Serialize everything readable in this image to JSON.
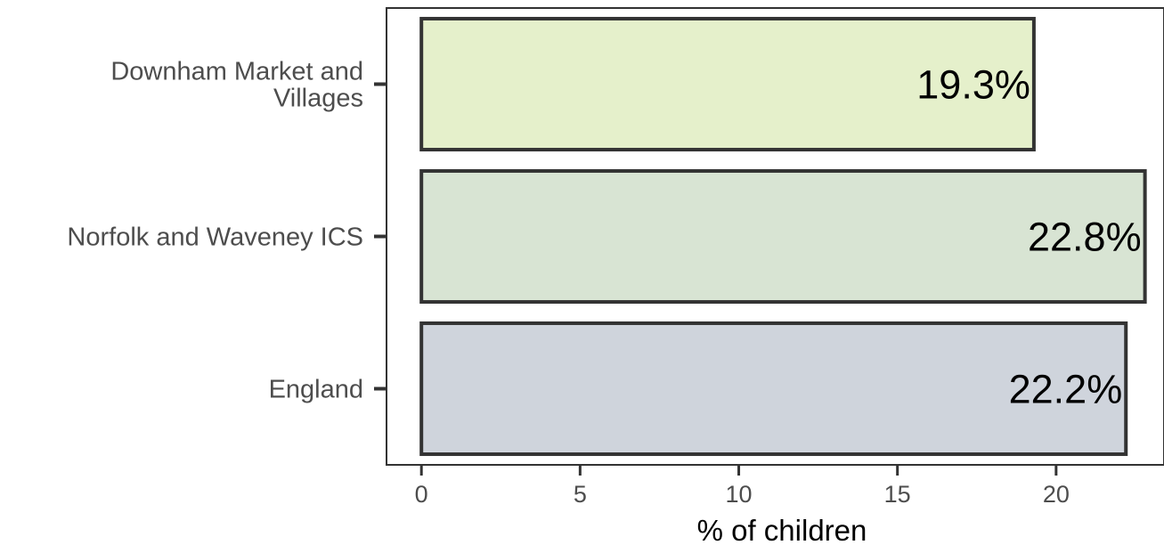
{
  "chart_data": {
    "type": "bar",
    "orientation": "horizontal",
    "categories": [
      [
        "Downham Market and",
        "Villages"
      ],
      [
        "Norfolk and Waveney ICS"
      ],
      [
        "England"
      ]
    ],
    "values": [
      19.3,
      22.8,
      22.2
    ],
    "value_labels": [
      "19.3%",
      "22.8%",
      "22.2%"
    ],
    "colors": [
      "#e5f0cb",
      "#d8e4d3",
      "#cfd4dc"
    ],
    "bar_outline_color": "#333333",
    "xlabel": "% of children",
    "ylabel": "",
    "xlim": [
      -1.1,
      23.4
    ],
    "xticks": [
      0,
      5,
      10,
      15,
      20
    ],
    "xtick_labels": [
      "0",
      "5",
      "10",
      "15",
      "20"
    ],
    "grid": false,
    "legend": "none"
  }
}
